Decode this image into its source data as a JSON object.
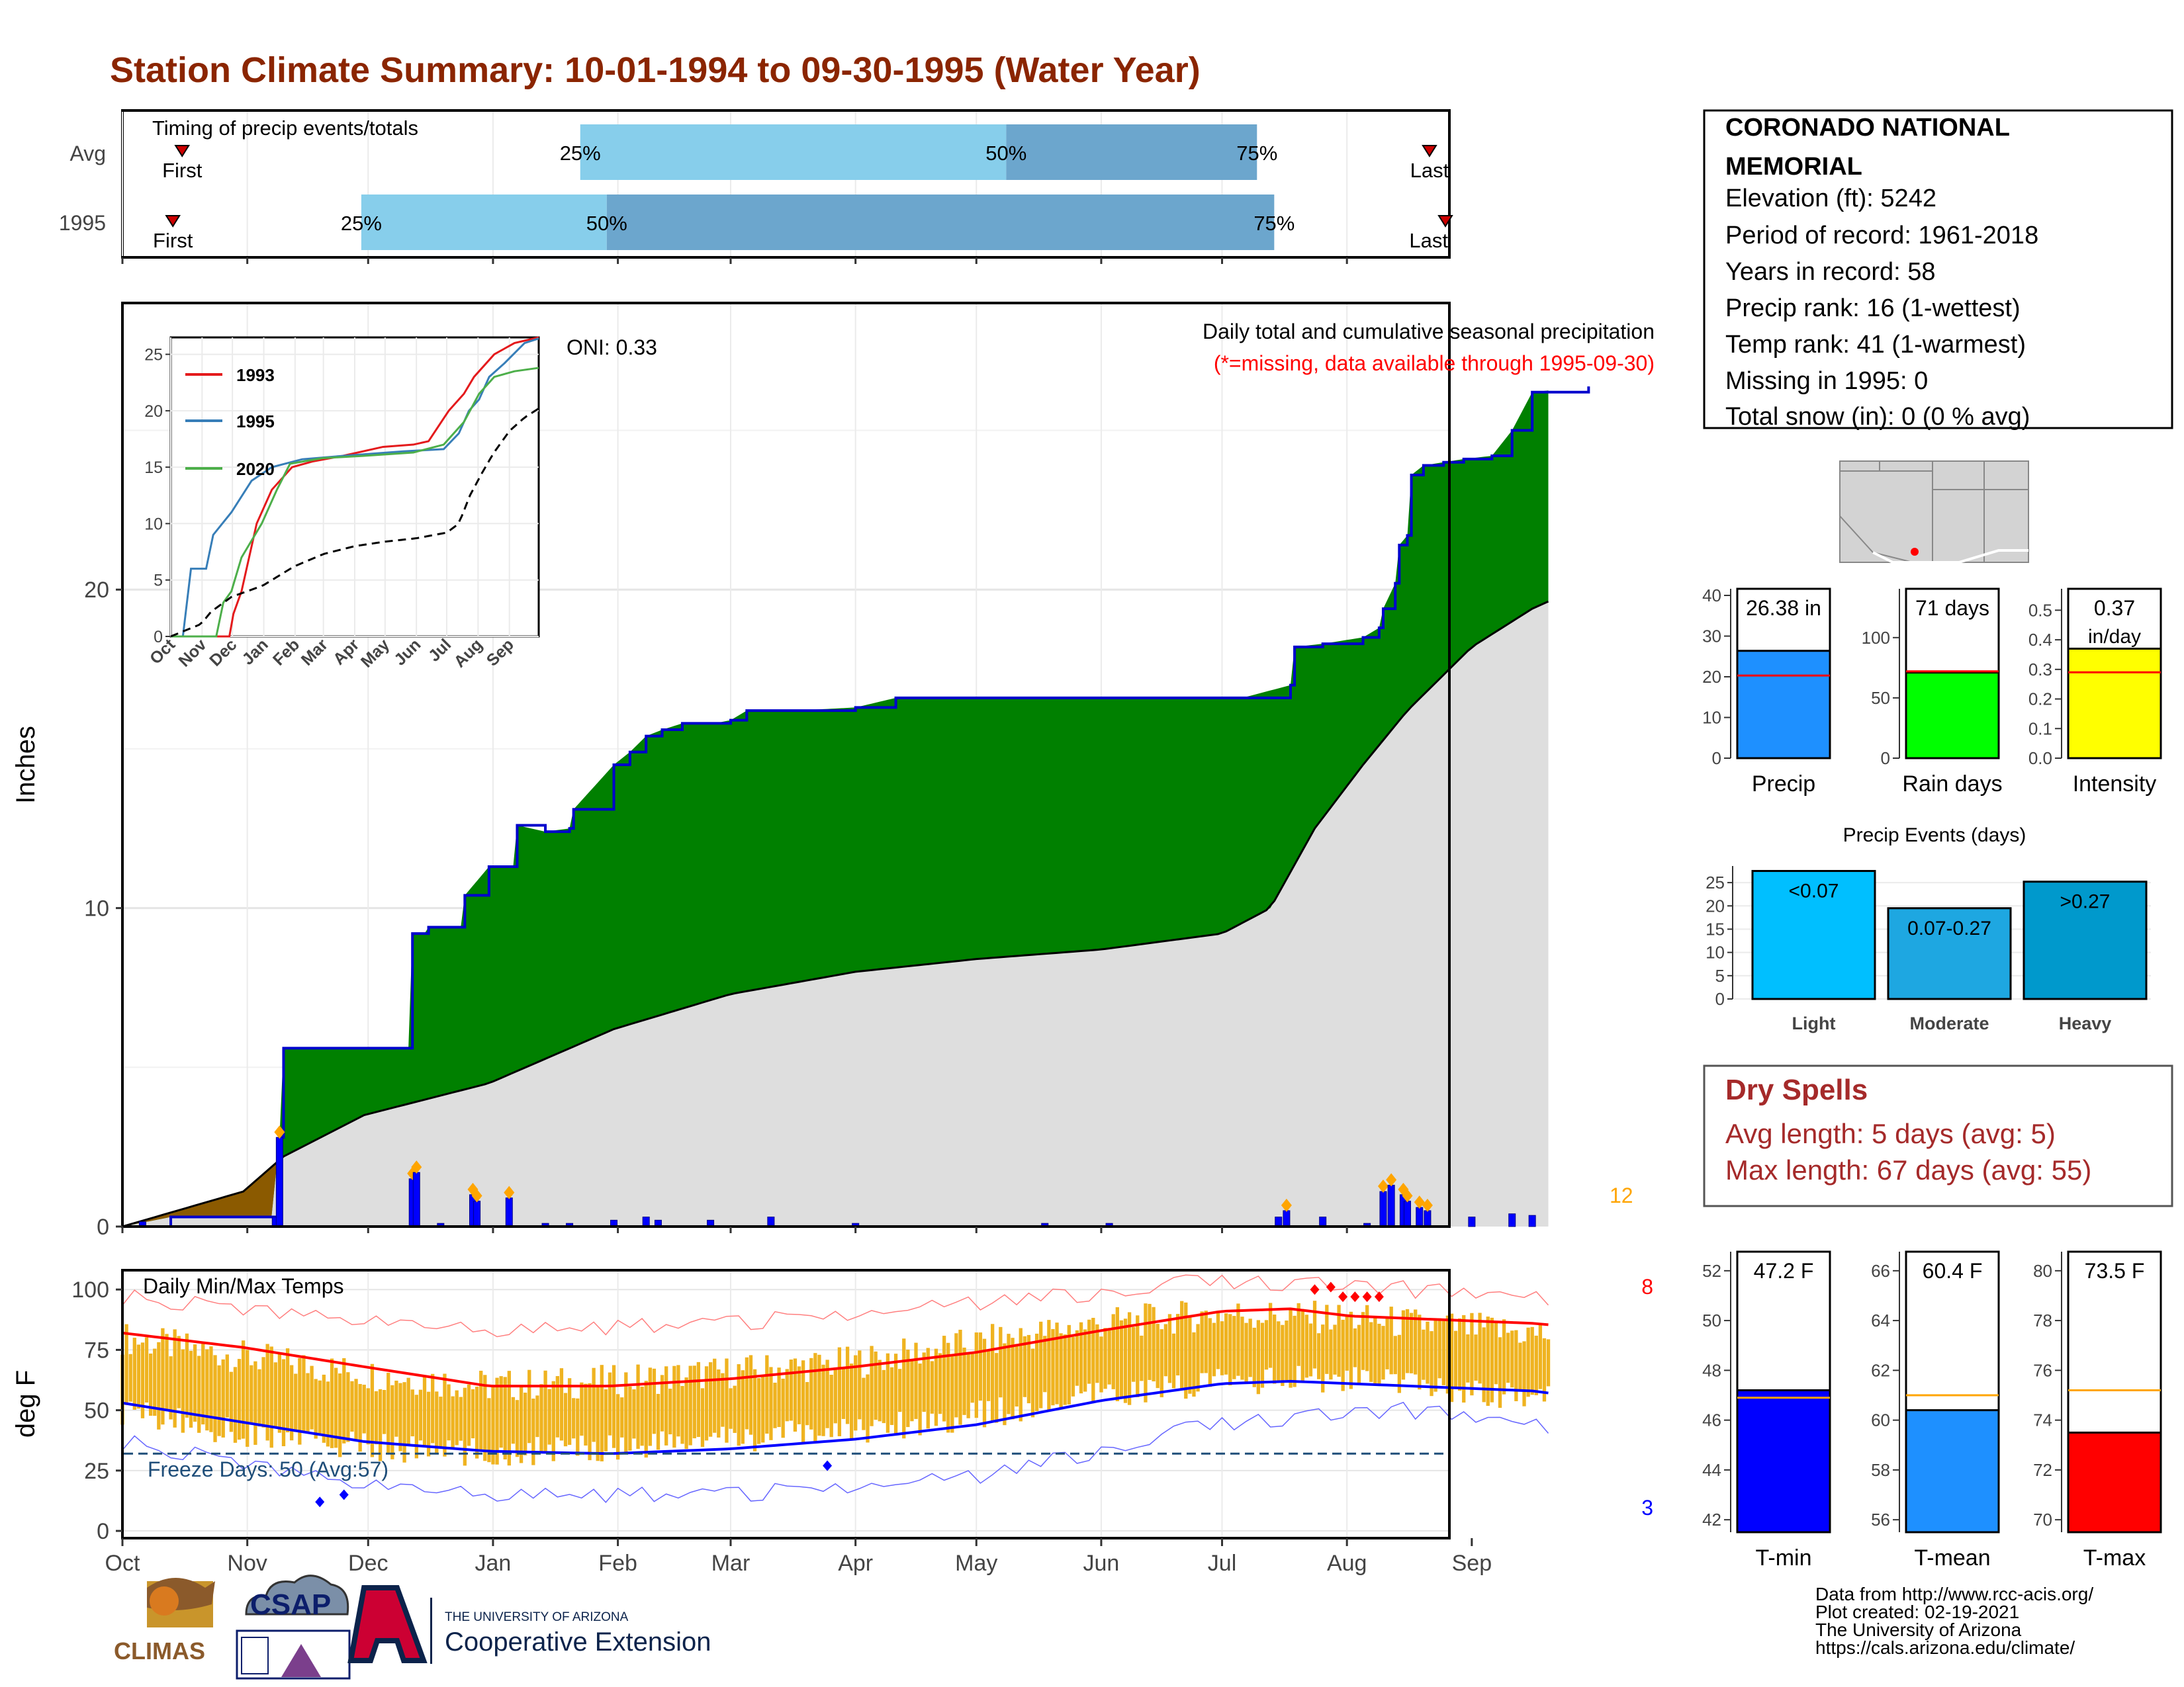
{
  "title": "Station Climate Summary: 10-01-1994 to 09-30-1995 (Water Year)",
  "colors": {
    "title": "#8B2500",
    "precip_fill": "#008000",
    "precip_line": "#0000CC",
    "avg_fill": "#DEDEDE",
    "missing_fill": "#8B5A00",
    "timing_light": "#87CEEB",
    "timing_dark": "#6CA6CD",
    "tmin": "#0000FF",
    "tmean": "#1E90FF",
    "tmax": "#FF0000",
    "temp_range": "#EFB320",
    "rain_days": "#00FF00",
    "intensity": "#FFFF00",
    "events_light": "#00BFFF",
    "events_mod": "#1EA7E1",
    "events_heavy": "#0099CC",
    "dry_spells": "#A52A2A",
    "highlight": "#FFA500"
  },
  "timing": {
    "label": "Timing of precip events/totals",
    "rows": [
      {
        "name": "Avg",
        "first_label": "First",
        "last_label": "Last",
        "p25_label": "25%",
        "p50_label": "50%",
        "p75_label": "75%",
        "first": 0.045,
        "p25": 0.345,
        "p50": 0.666,
        "p75": 0.855,
        "last": 0.985
      },
      {
        "name": "1995",
        "first_label": "First",
        "last_label": "Last",
        "p25_label": "25%",
        "p50_label": "50%",
        "p75_label": "75%",
        "first": 0.038,
        "p25": 0.18,
        "p50": 0.365,
        "p75": 0.868,
        "last": 0.997
      }
    ]
  },
  "info": {
    "station": "CORONADO NATIONAL",
    "station2": "MEMORIAL",
    "elevation": "Elevation (ft): 5242",
    "period": "Period of record: 1961-2018",
    "years": "Years in record: 58",
    "precip_rank": "Precip rank: 16 (1-wettest)",
    "temp_rank": "Temp rank: 41 (1-warmest)",
    "missing": "Missing in 1995: 0",
    "snow": "Total snow (in): 0 (0 % avg)"
  },
  "precip": {
    "ylabel": "Inches",
    "heading": "Daily total and cumulative seasonal precipitation",
    "subheading": "(*=missing, data available through 1995-09-30)",
    "oni": "ONI: 0.33",
    "count_label": "12",
    "yticks": [
      "0",
      "10",
      "20"
    ],
    "months": [
      "Oct",
      "Nov",
      "Dec",
      "Jan",
      "Feb",
      "Mar",
      "Apr",
      "May",
      "Jun",
      "Jul",
      "Aug",
      "Sep"
    ]
  },
  "inset": {
    "yticks": [
      "0",
      "5",
      "10",
      "15",
      "20",
      "25"
    ],
    "xticks": [
      "Oct",
      "Nov",
      "Dec",
      "Jan",
      "Feb",
      "Mar",
      "Apr",
      "May",
      "Jun",
      "Jul",
      "Aug",
      "Sep"
    ],
    "legend": [
      "1993",
      "1995",
      "2020"
    ]
  },
  "summary": {
    "precip": {
      "label": "Precip",
      "value": "26.38 in",
      "ticks": [
        "0",
        "10",
        "20",
        "30",
        "40"
      ]
    },
    "rain": {
      "label": "Rain days",
      "value": "71 days",
      "ticks": [
        "0",
        "50",
        "100"
      ]
    },
    "intensity": {
      "label": "Intensity",
      "value": "0.37",
      "unit": "in/day",
      "ticks": [
        "0.0",
        "0.1",
        "0.2",
        "0.3",
        "0.4",
        "0.5"
      ]
    }
  },
  "events": {
    "title": "Precip Events (days)",
    "ticks": [
      "0",
      "5",
      "10",
      "15",
      "20",
      "25"
    ],
    "bars": [
      {
        "cat": "Light",
        "label": "<0.07",
        "value": 27.5
      },
      {
        "cat": "Moderate",
        "label": "0.07-0.27",
        "value": 19.5
      },
      {
        "cat": "Heavy",
        "label": ">0.27",
        "value": 25.2
      }
    ]
  },
  "dry": {
    "title": "Dry Spells",
    "avg": "Avg length: 5 days (avg: 5)",
    "max": "Max length: 67 days (avg: 55)"
  },
  "temps": {
    "ylabel": "deg F",
    "heading": "Daily Min/Max Temps",
    "freeze": "Freeze Days: 50 (Avg:57)",
    "hot_count": "8",
    "cold_count": "3",
    "yticks": [
      "0",
      "25",
      "50",
      "75",
      "100"
    ],
    "months": [
      "Oct",
      "Nov",
      "Dec",
      "Jan",
      "Feb",
      "Mar",
      "Apr",
      "May",
      "Jun",
      "Jul",
      "Aug",
      "Sep"
    ]
  },
  "tsummary": {
    "tmin": {
      "label": "T-min",
      "value": "47.2 F",
      "ticks": [
        "42",
        "44",
        "46",
        "48",
        "50",
        "52"
      ]
    },
    "tmean": {
      "label": "T-mean",
      "value": "60.4 F",
      "ticks": [
        "56",
        "58",
        "60",
        "62",
        "64",
        "66"
      ]
    },
    "tmax": {
      "label": "T-max",
      "value": "73.5 F",
      "ticks": [
        "70",
        "72",
        "74",
        "76",
        "78",
        "80"
      ]
    }
  },
  "logos": {
    "climas": "CLIMAS",
    "csap": "CSAP",
    "ua_line1": "THE UNIVERSITY OF ARIZONA",
    "ua_line2": "Cooperative Extension"
  },
  "credits": {
    "line1": "Data from http://www.rcc-acis.org/",
    "line2": "Plot created: 02-19-2021",
    "line3": "The University of Arizona",
    "line4": "https://cals.arizona.edu/climate/"
  },
  "chart_data": [
    {
      "type": "area",
      "title": "Daily total and cumulative seasonal precipitation",
      "ylabel": "Inches",
      "ylim": [
        0,
        29
      ],
      "x": [
        "Oct",
        "Nov",
        "Dec",
        "Jan",
        "Feb",
        "Mar",
        "Apr",
        "May",
        "Jun",
        "Jul",
        "Aug",
        "Sep"
      ],
      "series": [
        {
          "name": "1995",
          "values": [
            [
              0,
              0
            ],
            [
              12,
              0.3
            ],
            [
              37,
              0.3
            ],
            [
              39,
              2.8
            ],
            [
              40,
              5.6
            ],
            [
              71,
              5.6
            ],
            [
              72,
              9.2
            ],
            [
              75,
              9.2
            ],
            [
              76,
              9.4
            ],
            [
              84,
              9.4
            ],
            [
              85,
              10.4
            ],
            [
              91,
              11.3
            ],
            [
              97,
              11.3
            ],
            [
              98,
              12.6
            ],
            [
              105,
              12.4
            ],
            [
              111,
              12.5
            ],
            [
              112,
              13.1
            ],
            [
              122,
              14.5
            ],
            [
              126,
              14.9
            ],
            [
              130,
              15.4
            ],
            [
              134,
              15.6
            ],
            [
              139,
              15.8
            ],
            [
              147,
              15.8
            ],
            [
              151,
              15.9
            ],
            [
              155,
              16.2
            ],
            [
              167,
              16.2
            ],
            [
              182,
              16.3
            ],
            [
              192,
              16.6
            ],
            [
              205,
              16.6
            ],
            [
              229,
              16.6
            ],
            [
              260,
              16.6
            ],
            [
              278,
              16.6
            ],
            [
              290,
              17
            ],
            [
              291,
              18.2
            ],
            [
              298,
              18.3
            ],
            [
              308,
              18.5
            ],
            [
              312,
              18.8
            ],
            [
              313,
              19.4
            ],
            [
              316,
              20.2
            ],
            [
              317,
              21.4
            ],
            [
              319,
              21.7
            ],
            [
              320,
              23.6
            ],
            [
              323,
              23.9
            ],
            [
              328,
              24
            ],
            [
              333,
              24.1
            ],
            [
              340,
              24.2
            ],
            [
              345,
              25
            ],
            [
              350,
              26.2
            ],
            [
              364,
              26.38
            ]
          ]
        },
        {
          "name": "Avg",
          "values": [
            [
              0,
              0
            ],
            [
              30,
              1.1
            ],
            [
              40,
              2.2
            ],
            [
              60,
              3.5
            ],
            [
              91,
              4.5
            ],
            [
              122,
              6.2
            ],
            [
              151,
              7.3
            ],
            [
              182,
              8
            ],
            [
              212,
              8.4
            ],
            [
              243,
              8.7
            ],
            [
              273,
              9.2
            ],
            [
              285,
              10
            ],
            [
              296,
              12.5
            ],
            [
              308,
              14.5
            ],
            [
              319,
              16.2
            ],
            [
              335,
              18.2
            ],
            [
              350,
              19.4
            ],
            [
              364,
              20.2
            ]
          ]
        }
      ],
      "daily": [
        [
          5,
          0.15
        ],
        [
          38,
          0.3
        ],
        [
          39,
          2.8
        ],
        [
          72,
          1.5
        ],
        [
          73,
          1.7
        ],
        [
          79,
          0.1
        ],
        [
          87,
          1
        ],
        [
          88,
          0.8
        ],
        [
          96,
          0.9
        ],
        [
          105,
          0.1
        ],
        [
          111,
          0.1
        ],
        [
          122,
          0.2
        ],
        [
          130,
          0.3
        ],
        [
          133,
          0.2
        ],
        [
          146,
          0.2
        ],
        [
          161,
          0.3
        ],
        [
          182,
          0.1
        ],
        [
          229,
          0.1
        ],
        [
          245,
          0.1
        ],
        [
          287,
          0.3
        ],
        [
          289,
          0.5
        ],
        [
          298,
          0.3
        ],
        [
          309,
          0.1
        ],
        [
          313,
          1.1
        ],
        [
          315,
          1.3
        ],
        [
          318,
          1.0
        ],
        [
          319,
          0.8
        ],
        [
          322,
          0.6
        ],
        [
          324,
          0.5
        ],
        [
          335,
          0.3
        ],
        [
          345,
          0.4
        ],
        [
          350,
          0.35
        ]
      ]
    },
    {
      "type": "line",
      "title": "Daily Min/Max Temps",
      "ylabel": "deg F",
      "ylim": [
        -3,
        108
      ],
      "x": [
        "Oct",
        "Nov",
        "Dec",
        "Jan",
        "Feb",
        "Mar",
        "Apr",
        "May",
        "Jun",
        "Jul",
        "Aug",
        "Sep"
      ],
      "series": [
        {
          "name": "Avg max",
          "values": [
            [
              0,
              82
            ],
            [
              30,
              76
            ],
            [
              60,
              68
            ],
            [
              91,
              60
            ],
            [
              121,
              60
            ],
            [
              151,
              63
            ],
            [
              182,
              68
            ],
            [
              212,
              74
            ],
            [
              243,
              83
            ],
            [
              273,
              91
            ],
            [
              290,
              92
            ],
            [
              305,
              89
            ],
            [
              320,
              88
            ],
            [
              350,
              86
            ],
            [
              364,
              84
            ]
          ]
        },
        {
          "name": "Avg min",
          "values": [
            [
              0,
              53
            ],
            [
              30,
              45
            ],
            [
              60,
              37
            ],
            [
              91,
              33
            ],
            [
              121,
              32
            ],
            [
              151,
              34
            ],
            [
              182,
              38
            ],
            [
              212,
              44
            ],
            [
              243,
              54
            ],
            [
              273,
              61
            ],
            [
              290,
              62
            ],
            [
              305,
              61
            ],
            [
              320,
              60
            ],
            [
              350,
              58
            ],
            [
              364,
              55
            ]
          ]
        },
        {
          "name": "Record max",
          "values": [
            [
              0,
              97
            ],
            [
              60,
              88
            ],
            [
              91,
              82
            ],
            [
              151,
              86
            ],
            [
              212,
              94
            ],
            [
              273,
              104
            ],
            [
              320,
              100
            ],
            [
              364,
              94
            ]
          ]
        },
        {
          "name": "Record min",
          "values": [
            [
              0,
              37
            ],
            [
              60,
              20
            ],
            [
              91,
              14
            ],
            [
              151,
              15
            ],
            [
              212,
              22
            ],
            [
              273,
              45
            ],
            [
              320,
              50
            ],
            [
              364,
              40
            ]
          ]
        },
        {
          "name": "Freeze",
          "values": [
            [
              0,
              32
            ],
            [
              364,
              32
            ]
          ]
        }
      ],
      "daily_max_by_month": [
        80,
        72,
        65,
        60,
        62,
        66,
        70,
        78,
        86,
        90,
        88,
        84
      ],
      "daily_min_by_month": [
        50,
        40,
        35,
        32,
        35,
        38,
        42,
        48,
        56,
        62,
        63,
        58
      ]
    },
    {
      "type": "bar",
      "title": "Precip",
      "categories": [
        "Precip"
      ],
      "values": [
        26.38
      ],
      "ylim": [
        0,
        40
      ],
      "avg": 20.3
    },
    {
      "type": "bar",
      "title": "Rain days",
      "categories": [
        "Rain days"
      ],
      "values": [
        71
      ],
      "ylim": [
        0,
        135
      ],
      "avg": 72
    },
    {
      "type": "bar",
      "title": "Intensity",
      "categories": [
        "Intensity"
      ],
      "values": [
        0.37
      ],
      "ylim": [
        0,
        0.55
      ],
      "avg": 0.29
    },
    {
      "type": "bar",
      "title": "Precip Events (days)",
      "categories": [
        "Light",
        "Moderate",
        "Heavy"
      ],
      "values": [
        27.5,
        19.5,
        25.2
      ],
      "ylim": [
        0,
        28
      ]
    },
    {
      "type": "bar",
      "title": "T-min",
      "categories": [
        "T-min"
      ],
      "values": [
        47.2
      ],
      "ylim": [
        41.5,
        52.5
      ],
      "avg": 46.9
    },
    {
      "type": "bar",
      "title": "T-mean",
      "categories": [
        "T-mean"
      ],
      "values": [
        60.4
      ],
      "ylim": [
        55.5,
        66.5
      ],
      "avg": 61
    },
    {
      "type": "bar",
      "title": "T-max",
      "categories": [
        "T-max"
      ],
      "values": [
        73.5
      ],
      "ylim": [
        69.5,
        80.5
      ],
      "avg": 75.2
    }
  ]
}
